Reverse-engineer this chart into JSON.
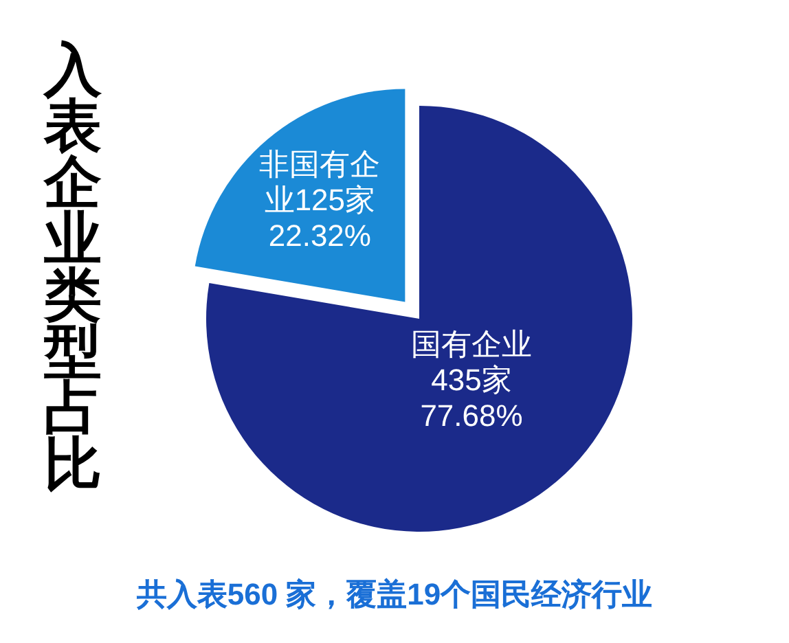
{
  "chart_data": {
    "type": "pie",
    "title": "入表企业类型占比",
    "categories": [
      "国有企业",
      "非国有企业"
    ],
    "values": [
      435,
      125
    ],
    "colors": [
      "#1b2a8a",
      "#1b8ad6"
    ],
    "value_labels": [
      "435家\n77.68%",
      "125家\n22.32%"
    ],
    "annotations": [
      "共入表560 家，覆盖19个国民经济行业"
    ]
  }
}
